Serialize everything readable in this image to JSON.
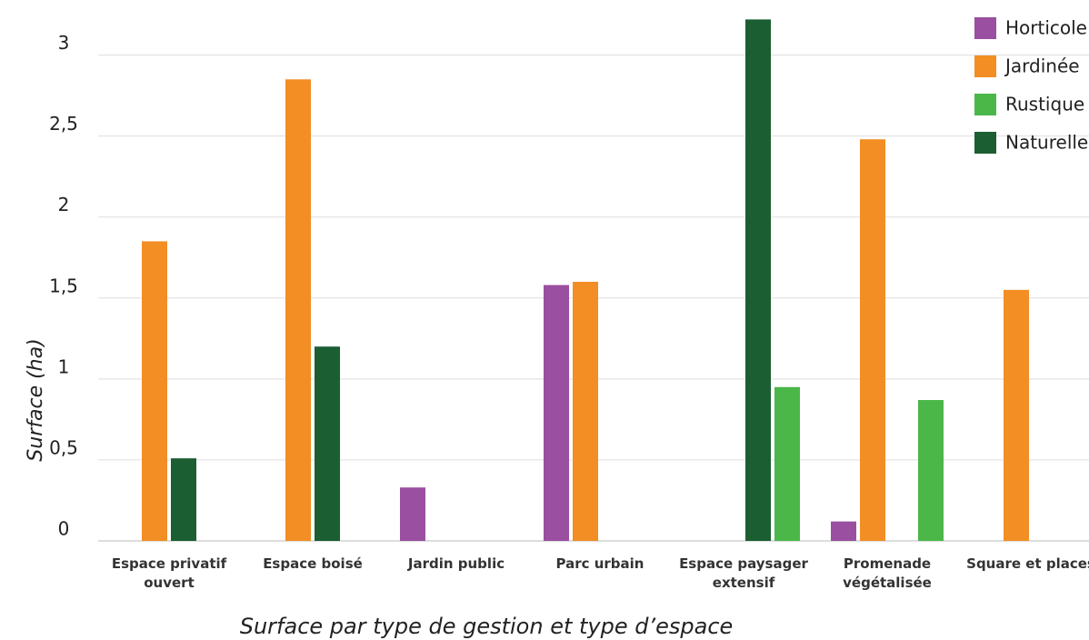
{
  "chart_data": {
    "type": "bar",
    "y_label": "Surface (ha)",
    "caption": "Surface par type de gestion et type d’espace",
    "categories": [
      "Espace privatif ouvert",
      "Espace boisé",
      "Jardin public",
      "Parc urbain",
      "Espace paysager extensif",
      "Promenade végétalisée",
      "Square et places"
    ],
    "series": [
      {
        "name": "Horticole",
        "color": "#9a4fa0",
        "values": [
          null,
          null,
          0.33,
          1.58,
          null,
          0.12,
          null
        ]
      },
      {
        "name": "Jardinée",
        "color": "#f28e24",
        "values": [
          1.85,
          2.85,
          null,
          1.6,
          null,
          2.48,
          1.55
        ]
      },
      {
        "name": "Rustique",
        "color": "#4bb749",
        "values": [
          null,
          null,
          null,
          null,
          0.95,
          0.87,
          null
        ]
      },
      {
        "name": "Naturelle",
        "color": "#1b5e32",
        "values": [
          0.51,
          1.2,
          null,
          null,
          3.22,
          null,
          null
        ]
      }
    ],
    "ylim": [
      0,
      3.34
    ],
    "yticks": [
      0,
      {
        "value": 0.5,
        "label": "0,5"
      },
      1,
      {
        "value": 1.5,
        "label": "1,5"
      },
      2,
      {
        "value": 2.5,
        "label": "2,5"
      },
      3
    ],
    "grid": true,
    "legend": "top-right"
  }
}
